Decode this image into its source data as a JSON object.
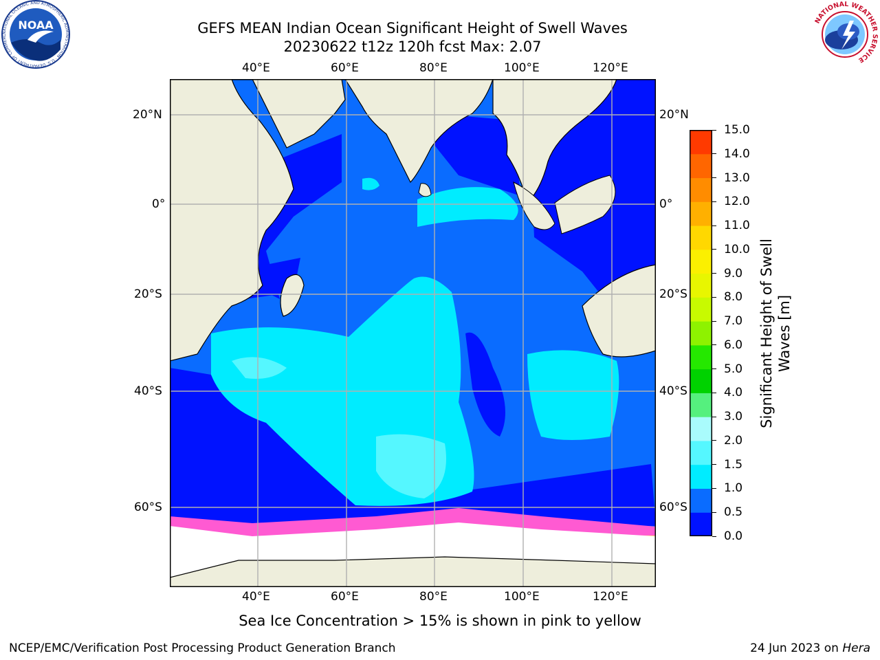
{
  "title": {
    "line1": "GEFS MEAN Indian Ocean Significant Height of Swell Waves",
    "line2": "20230622 t12z 120h fcst   Max: 2.07"
  },
  "logos": {
    "noaa_text": "NOAA",
    "noaa_ring": "NATIONAL OCEANIC AND ATMOSPHERIC ADMINISTRATION · U.S. DEPARTMENT OF COMMERCE",
    "nws_ring": "NATIONAL WEATHER SERVICE"
  },
  "map": {
    "lon_labels": [
      "40°E",
      "60°E",
      "80°E",
      "100°E",
      "120°E"
    ],
    "lat_labels": [
      "20°N",
      "0°",
      "20°S",
      "40°S",
      "60°S"
    ],
    "extent": {
      "lon": [
        20,
        130
      ],
      "lat": [
        -70,
        27
      ]
    }
  },
  "colorbar": {
    "label_line1": "Significant Height of Swell",
    "label_line2": "Waves [m]",
    "ticks": [
      "0.0",
      "0.5",
      "1.0",
      "1.5",
      "2.0",
      "3.0",
      "4.0",
      "5.0",
      "6.0",
      "7.0",
      "8.0",
      "9.0",
      "10.0",
      "11.0",
      "12.0",
      "13.0",
      "14.0",
      "15.0"
    ],
    "colors": [
      "#0012ff",
      "#0a6cff",
      "#00ecff",
      "#55f7ff",
      "#a9fbfc",
      "#55f07e",
      "#00d200",
      "#25e800",
      "#8ef200",
      "#c8fa00",
      "#e8f600",
      "#fbf000",
      "#ffd800",
      "#ffb000",
      "#ff8c00",
      "#ff6600",
      "#ff3a00",
      "#ff0000"
    ]
  },
  "sea_ice_note": "Sea Ice Concentration > 15% is shown in pink to yellow",
  "footer": {
    "left": "NCEP/EMC/Verification Post Processing Product Generation Branch",
    "right_date": "24 Jun 2023 on ",
    "right_machine": "Hera"
  }
}
